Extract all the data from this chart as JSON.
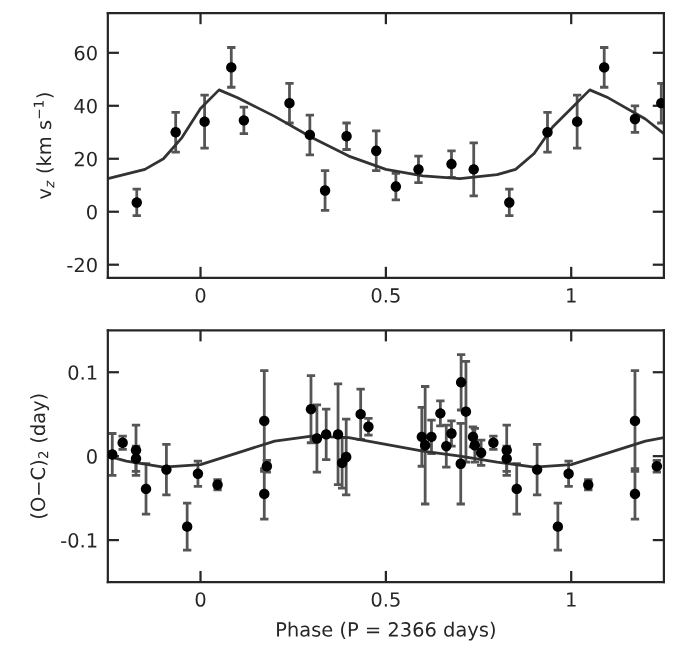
{
  "chart_data": [
    {
      "type": "scatter",
      "ylabel": "v$_{z}$ (km s$^{−1}$)",
      "xlim": [
        -0.25,
        1.25
      ],
      "xticks": [
        0,
        0.5,
        1
      ],
      "ylim": [
        -25,
        75
      ],
      "yticks": [
        -20,
        0,
        20,
        40,
        60
      ],
      "marker": "circle",
      "grid": false,
      "series": [
        {
          "color": "#000000",
          "x": [
            -0.172,
            -0.067,
            0.011,
            0.083,
            0.117,
            0.24,
            0.295,
            0.336,
            0.394,
            0.474,
            0.527,
            0.588,
            0.677,
            0.737,
            0.833,
            0.936,
            1.016,
            1.089,
            1.172,
            1.243
          ],
          "values": [
            3.5,
            30,
            34,
            54.5,
            34.5,
            41,
            29,
            8,
            28.5,
            23,
            9.5,
            16,
            18,
            16,
            3.5,
            30,
            34,
            54.5,
            35,
            41
          ],
          "errors": [
            5,
            7.5,
            10,
            7.5,
            5,
            7.5,
            7.5,
            7.5,
            5,
            7.5,
            5,
            5,
            5,
            10,
            5,
            7.5,
            10,
            7.5,
            5,
            7.5
          ]
        },
        {
          "type": "line",
          "marker": "none",
          "color": "#333333",
          "x": [
            -0.25,
            -0.15,
            -0.1,
            -0.05,
            0,
            0.05,
            0.1,
            0.2,
            0.3,
            0.4,
            0.5,
            0.6,
            0.7,
            0.8,
            0.85,
            0.9,
            0.95,
            1.0,
            1.05,
            1.1,
            1.2,
            1.25
          ],
          "values": [
            12.5,
            16,
            20,
            28,
            39,
            46,
            43,
            36,
            28,
            21,
            16,
            13.5,
            12.5,
            14,
            16,
            22,
            32,
            39,
            46,
            43,
            35,
            29.5
          ]
        }
      ]
    },
    {
      "type": "scatter",
      "xlabel": "Phase (P = 2366 days)",
      "ylabel": "(O−C)$_{2}$ (day)",
      "xlim": [
        -0.25,
        1.25
      ],
      "xticks": [
        0,
        0.5,
        1
      ],
      "ylim": [
        -0.15,
        0.15
      ],
      "yticks": [
        -0.1,
        0,
        0.1
      ],
      "marker": "circle",
      "grid": false,
      "series": [
        {
          "color": "#000000",
          "x": [
            -0.238,
            -0.21,
            -0.174,
            -0.174,
            -0.147,
            -0.092,
            -0.036,
            -0.007,
            0.046,
            0.172,
            0.172,
            0.179,
            0.298,
            0.314,
            0.339,
            0.371,
            0.382,
            0.393,
            0.432,
            0.453,
            0.597,
            0.606,
            0.623,
            0.647,
            0.663,
            0.677,
            0.702,
            0.703,
            0.716,
            0.735,
            0.74,
            0.757,
            0.79,
            0.826,
            0.826,
            0.853,
            0.908,
            0.964,
            0.993,
            1.046,
            1.172,
            1.172,
            1.231
          ],
          "values": [
            0.002,
            0.016,
            0.007,
            -0.003,
            -0.039,
            -0.016,
            -0.084,
            -0.021,
            -0.034,
            0.042,
            -0.045,
            -0.012,
            0.056,
            0.021,
            0.026,
            0.026,
            -0.008,
            -0.001,
            0.05,
            0.035,
            0.023,
            0.013,
            0.023,
            0.051,
            0.012,
            0.027,
            -0.009,
            0.088,
            0.053,
            0.023,
            0.013,
            0.004,
            0.016,
            0.007,
            -0.003,
            -0.039,
            -0.016,
            -0.084,
            -0.021,
            -0.034,
            0.042,
            -0.045,
            -0.012
          ],
          "errors": [
            0.025,
            0.008,
            0.03,
            0.015,
            0.03,
            0.03,
            0.028,
            0.015,
            0.006,
            0.06,
            0.03,
            0.007,
            0.04,
            0.04,
            0.03,
            0.06,
            0.03,
            0.045,
            0.03,
            0.01,
            0.035,
            0.07,
            0.02,
            0.015,
            0.025,
            0.015,
            0.048,
            0.033,
            0.06,
            0.012,
            0.02,
            0.015,
            0.008,
            0.03,
            0.015,
            0.03,
            0.03,
            0.028,
            0.015,
            0.006,
            0.06,
            0.03,
            0.007
          ]
        },
        {
          "type": "line",
          "marker": "none",
          "color": "#333333",
          "x": [
            -0.25,
            -0.2,
            -0.1,
            0,
            0.1,
            0.2,
            0.3,
            0.4,
            0.5,
            0.6,
            0.7,
            0.8,
            0.9,
            1.0,
            1.1,
            1.2,
            1.25
          ],
          "values": [
            0.0,
            -0.006,
            -0.013,
            -0.01,
            0.004,
            0.018,
            0.024,
            0.022,
            0.014,
            0.006,
            0.0,
            -0.007,
            -0.013,
            -0.01,
            0.004,
            0.018,
            0.022
          ]
        }
      ]
    }
  ]
}
